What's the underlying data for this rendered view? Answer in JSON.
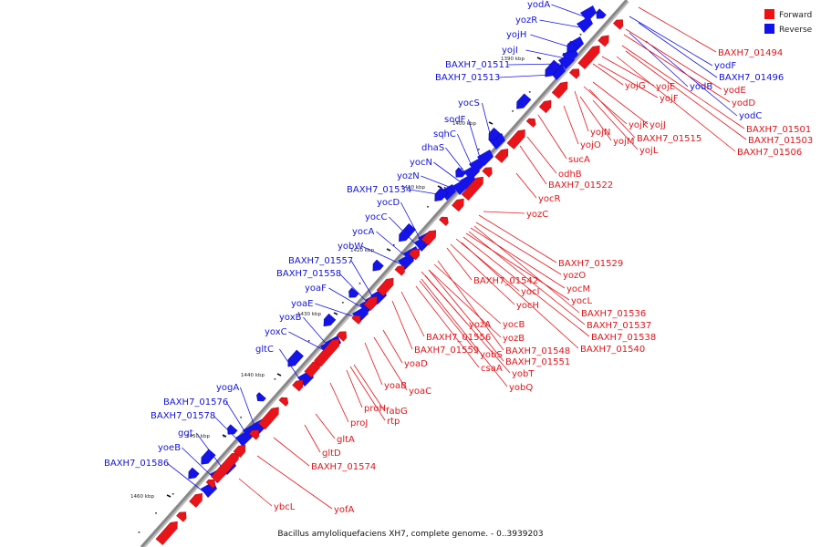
{
  "caption": "Bacillus amyloliquefaciens XH7, complete genome. - 0..3939203",
  "legend": [
    {
      "label": "Forward",
      "color": "#ee1111"
    },
    {
      "label": "Reverse",
      "color": "#1111ee"
    }
  ],
  "colors": {
    "forward": "#e8141a",
    "reverse": "#1414e8",
    "backbone": "#888888"
  },
  "kbp_marks": [
    "1390 kbp",
    "1400 kbp",
    "1410 kbp",
    "1420 kbp",
    "1430 kbp",
    "1440 kbp",
    "1450 kbp",
    "1460 kbp"
  ],
  "reverse_genes": [
    "yodA",
    "yozR",
    "yojH",
    "yojI",
    "BAXH7_01511",
    "BAXH7_01513",
    "yocS",
    "sodF",
    "sqhC",
    "dhaS",
    "yocN",
    "yozN",
    "BAXH7_01534",
    "yocD",
    "yocC",
    "yocA",
    "yobW",
    "BAXH7_01557",
    "BAXH7_01558",
    "yoaF",
    "yoaE",
    "yoxB",
    "yoxC",
    "gltC",
    "yogA",
    "BAXH7_01576",
    "BAXH7_01578",
    "ggt",
    "yoeB",
    "BAXH7_01586",
    "yodF",
    "BAXH7_01496",
    "yodB",
    "yodC"
  ],
  "forward_genes": [
    "BAXH7_01494",
    "yodE",
    "yodD",
    "yojG",
    "yojE",
    "yojF",
    "yojK",
    "yojJ",
    "yojN",
    "yojM",
    "BAXH7_01515",
    "yojO",
    "yojL",
    "BAXH7_01501",
    "BAXH7_01503",
    "BAXH7_01506",
    "sucA",
    "odhB",
    "BAXH7_01522",
    "yocR",
    "yozC",
    "BAXH7_01529",
    "yozO",
    "yocM",
    "yocL",
    "BAXH7_01542",
    "yocI",
    "yocH",
    "BAXH7_01536",
    "BAXH7_01537",
    "BAXH7_01538",
    "BAXH7_01540",
    "yozA",
    "yocB",
    "BAXH7_01556",
    "yozB",
    "BAXH7_01559",
    "yobS",
    "BAXH7_01548",
    "BAXH7_01551",
    "csaA",
    "yobT",
    "yobQ",
    "yoaD",
    "yoaB",
    "yoaC",
    "proH",
    "fabG",
    "proJ",
    "rtp",
    "gltA",
    "gltD",
    "BAXH7_01574",
    "ybcL",
    "yofA"
  ]
}
